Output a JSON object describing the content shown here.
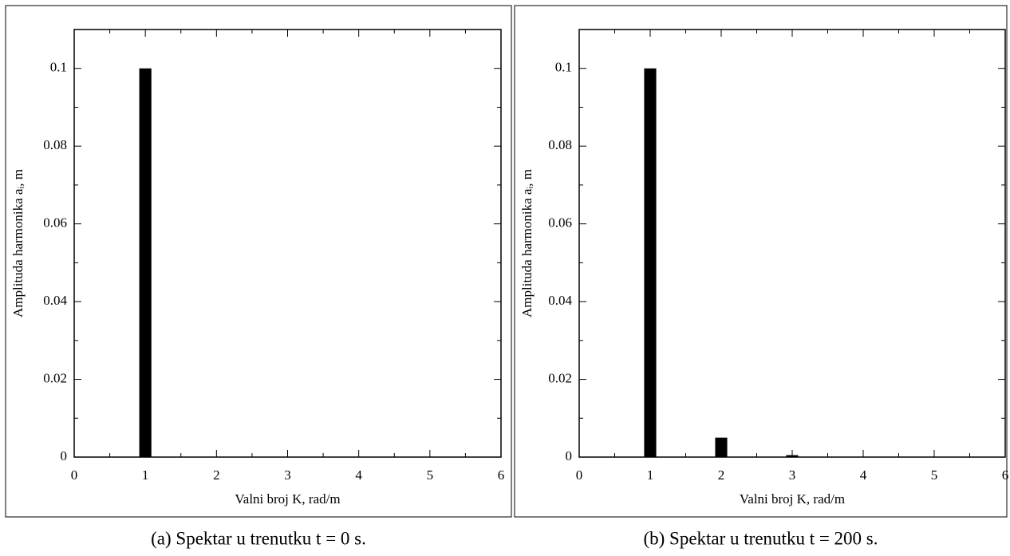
{
  "chart_data": [
    {
      "type": "bar",
      "xlabel": "Valni broj K, rad/m",
      "ylabel": "Amplituda harmonika aᵢ, m",
      "caption": "(a) Spektar u trenutku t = 0 s.",
      "x": [
        1
      ],
      "values": [
        0.1
      ],
      "color": "#000000",
      "xlim": [
        0,
        6
      ],
      "ylim": [
        0,
        0.11
      ],
      "xticks": [
        0,
        1,
        2,
        3,
        4,
        5,
        6
      ],
      "yticks": [
        0,
        0.02,
        0.04,
        0.06,
        0.08,
        0.1
      ],
      "xminor": [
        0.5,
        1.5,
        2.5,
        3.5,
        4.5,
        5.5
      ],
      "yminor": [
        0.01,
        0.03,
        0.05,
        0.07,
        0.09
      ]
    },
    {
      "type": "bar",
      "xlabel": "Valni broj K, rad/m",
      "ylabel": "Amplituda harmonika aᵢ, m",
      "caption": "(b) Spektar u trenutku t = 200 s.",
      "x": [
        1,
        2,
        3
      ],
      "values": [
        0.1,
        0.005,
        0.0005
      ],
      "color": "#000000",
      "xlim": [
        0,
        6
      ],
      "ylim": [
        0,
        0.11
      ],
      "xticks": [
        0,
        1,
        2,
        3,
        4,
        5,
        6
      ],
      "yticks": [
        0,
        0.02,
        0.04,
        0.06,
        0.08,
        0.1
      ],
      "xminor": [
        0.5,
        1.5,
        2.5,
        3.5,
        4.5,
        5.5
      ],
      "yminor": [
        0.01,
        0.03,
        0.05,
        0.07,
        0.09
      ]
    }
  ]
}
